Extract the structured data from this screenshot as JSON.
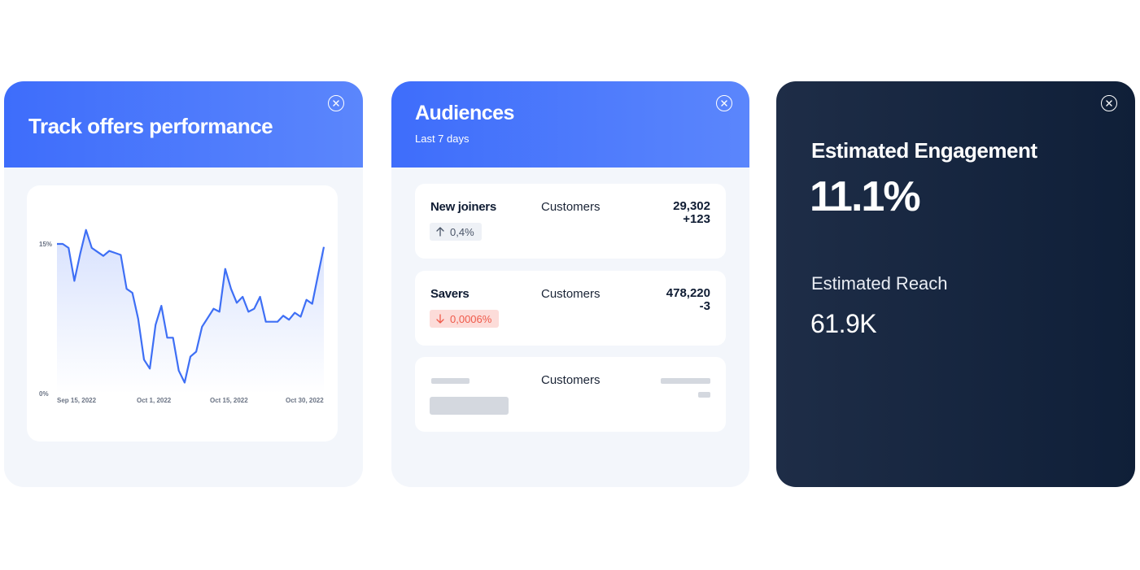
{
  "track_card": {
    "title": "Track offers performance",
    "chart_data": {
      "type": "area",
      "x_ticks": [
        "Sep 15, 2022",
        "Oct 1, 2022",
        "Oct 15, 2022",
        "Oct 30, 2022"
      ],
      "y_ticks": [
        "15%",
        "0%"
      ],
      "ylim": [
        0,
        15
      ],
      "colors": {
        "line": "#3e6ff5",
        "fill": "#dfe7fd"
      },
      "values": [
        15,
        15,
        14.6,
        11.3,
        14,
        16.4,
        14.6,
        14.2,
        13.8,
        14.3,
        14.1,
        13.9,
        10.5,
        10.1,
        7.5,
        3.4,
        2.5,
        6.9,
        8.8,
        5.6,
        5.6,
        2.3,
        1.1,
        3.7,
        4.2,
        6.7,
        7.6,
        8.5,
        8.2,
        12.5,
        10.5,
        9.1,
        9.7,
        8.2,
        8.5,
        9.7,
        7.2,
        7.2,
        7.2,
        7.8,
        7.4,
        8.1,
        7.7,
        9.4,
        9,
        11.9,
        14.7
      ]
    }
  },
  "audiences_card": {
    "title": "Audiences",
    "subtitle": "Last 7 days",
    "rows": [
      {
        "name": "New joiners",
        "segment": "Customers",
        "count": "29,302",
        "delta": "+123",
        "change": "0,4%",
        "direction": "up"
      },
      {
        "name": "Savers",
        "segment": "Customers",
        "count": "478,220",
        "delta": "-3",
        "change": "0,0006%",
        "direction": "down"
      },
      {
        "name": "",
        "segment": "Customers",
        "count": "",
        "delta": "",
        "change": "",
        "direction": "placeholder"
      }
    ]
  },
  "engagement_card": {
    "title": "Estimated Engagement",
    "engagement_value": "11.1%",
    "reach_label": "Estimated Reach",
    "reach_value": "61.9K"
  },
  "icons": {
    "close": "close-icon",
    "arrow_up": "arrow-up-icon",
    "arrow_down": "arrow-down-icon"
  }
}
